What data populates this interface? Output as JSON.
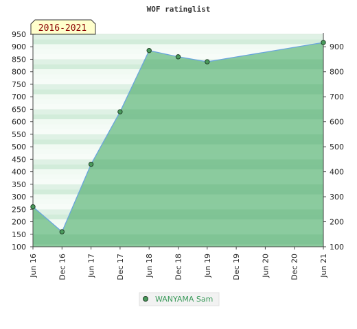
{
  "chart_data": {
    "type": "area",
    "title": "WOF ratinglist",
    "period_badge": "2016-2021",
    "x": [
      "Jun 16",
      "Dec 16",
      "Jun 17",
      "Dec 17",
      "Jun 18",
      "Dec 18",
      "Jun 19",
      "Dec 19",
      "Jun 20",
      "Dec 20",
      "Jun 21"
    ],
    "series": [
      {
        "name": "WANYAMA Sam",
        "points": [
          {
            "x": "Jun 16",
            "y": 260
          },
          {
            "x": "Dec 16",
            "y": 160
          },
          {
            "x": "Jun 17",
            "y": 430
          },
          {
            "x": "Dec 17",
            "y": 640
          },
          {
            "x": "Jun 18",
            "y": 885
          },
          {
            "x": "Dec 18",
            "y": 860
          },
          {
            "x": "Jun 19",
            "y": 840
          },
          {
            "x": "Jun 21",
            "y": 917
          }
        ]
      }
    ],
    "y_left": {
      "min": 100,
      "max": 950,
      "step": 50
    },
    "y_right": {
      "min": 100,
      "max": 900,
      "step": 100
    },
    "ylim": [
      100,
      950
    ],
    "legend": "bottom-center",
    "colors": {
      "area_fill": "#7cc492",
      "line": "#6aa5dd",
      "marker": "#4a9a5c",
      "marker_edge": "#1f3f25",
      "band_dark": "#c5e6cf",
      "band_light": "#f1faf3",
      "badge_bg": "#ffffcc"
    }
  }
}
